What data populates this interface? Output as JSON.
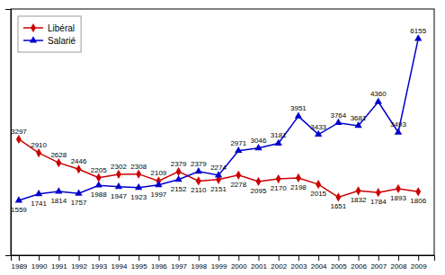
{
  "chart_data": {
    "type": "line",
    "x": [
      1989,
      1990,
      1991,
      1992,
      1993,
      1994,
      1995,
      1996,
      1997,
      1998,
      1999,
      2000,
      2001,
      2002,
      2003,
      2004,
      2005,
      2006,
      2007,
      2008,
      2009
    ],
    "xlim": [
      1988.6,
      2009.8
    ],
    "xticks": [
      1989,
      1990,
      1991,
      1992,
      1993,
      1994,
      1995,
      1996,
      1997,
      1998,
      1999,
      2000,
      2001,
      2002,
      2003,
      2004,
      2005,
      2006,
      2007,
      2008,
      2009
    ],
    "ylim": [
      0,
      7000
    ],
    "yticks": [],
    "tick_labels": "x",
    "grid": false,
    "legend": "upper left",
    "data_labels": true,
    "series": [
      {
        "name": "Libéral",
        "color": "#cc0000",
        "marker": "diamond",
        "values": [
          3297,
          2910,
          2628,
          2446,
          2205,
          2302,
          2308,
          2109,
          2379,
          2110,
          2151,
          2278,
          2095,
          2170,
          2198,
          2015,
          1651,
          1832,
          1784,
          1893,
          1806
        ]
      },
      {
        "name": "Salarié",
        "color": "#0000cc",
        "marker": "triangle",
        "values": [
          1559,
          1741,
          1814,
          1757,
          1988,
          1947,
          1923,
          1997,
          2152,
          2379,
          2274,
          2971,
          3046,
          3181,
          3951,
          3433,
          3764,
          3681,
          4360,
          3493,
          6155
        ]
      }
    ]
  }
}
